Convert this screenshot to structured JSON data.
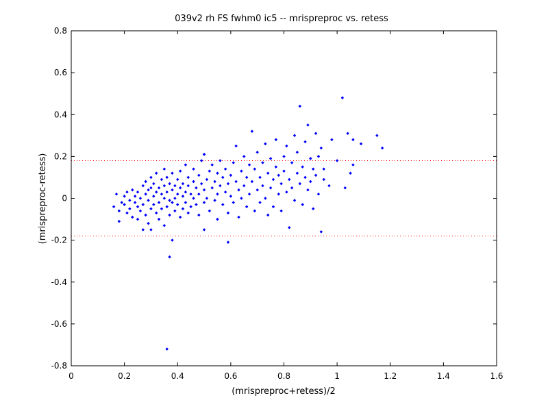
{
  "chart_data": {
    "type": "scatter",
    "title": "039v2 rh FS fwhm0 ic5 -- mrispreproc vs. retess",
    "xlabel": "(mrispreproc+retess)/2",
    "ylabel": "(mrispreproc-retess)",
    "xlim": [
      0,
      1.6
    ],
    "ylim": [
      -0.8,
      0.8
    ],
    "xticks": [
      0,
      0.2,
      0.4,
      0.6,
      0.8,
      1,
      1.2,
      1.4,
      1.6
    ],
    "xtick_labels": [
      "0",
      "0.2",
      "0.4",
      "0.6",
      "0.8",
      "1",
      "1.2",
      "1.4",
      "1.6"
    ],
    "yticks": [
      -0.8,
      -0.6,
      -0.4,
      -0.2,
      0,
      0.2,
      0.4,
      0.6,
      0.8
    ],
    "ytick_labels": [
      "-0.8",
      "-0.6",
      "-0.4",
      "-0.2",
      "0",
      "0.2",
      "0.4",
      "0.6",
      "0.8"
    ],
    "grid": false,
    "marker_color": "#0000ff",
    "reference_lines": [
      {
        "y": 0.18,
        "style": "dotted",
        "color": "#ff0000"
      },
      {
        "y": -0.18,
        "style": "dotted",
        "color": "#ff0000"
      }
    ],
    "points": [
      [
        0.16,
        -0.04
      ],
      [
        0.17,
        0.02
      ],
      [
        0.18,
        -0.06
      ],
      [
        0.18,
        -0.11
      ],
      [
        0.19,
        -0.02
      ],
      [
        0.2,
        -0.03
      ],
      [
        0.2,
        0.01
      ],
      [
        0.21,
        -0.07
      ],
      [
        0.21,
        0.03
      ],
      [
        0.22,
        -0.05
      ],
      [
        0.22,
        -0.01
      ],
      [
        0.23,
        -0.09
      ],
      [
        0.23,
        0.04
      ],
      [
        0.24,
        -0.02
      ],
      [
        0.24,
        0.01
      ],
      [
        0.25,
        -0.04
      ],
      [
        0.25,
        0.03
      ],
      [
        0.25,
        -0.1
      ],
      [
        0.26,
        0.0
      ],
      [
        0.26,
        -0.06
      ],
      [
        0.27,
        0.06
      ],
      [
        0.27,
        -0.03
      ],
      [
        0.27,
        -0.15
      ],
      [
        0.28,
        0.02
      ],
      [
        0.28,
        -0.08
      ],
      [
        0.28,
        0.08
      ],
      [
        0.29,
        -0.01
      ],
      [
        0.29,
        0.04
      ],
      [
        0.29,
        -0.12
      ],
      [
        0.3,
        0.05
      ],
      [
        0.3,
        -0.05
      ],
      [
        0.3,
        0.1
      ],
      [
        0.31,
        0.01
      ],
      [
        0.31,
        -0.03
      ],
      [
        0.31,
        0.07
      ],
      [
        0.32,
        -0.07
      ],
      [
        0.32,
        0.03
      ],
      [
        0.32,
        0.12
      ],
      [
        0.33,
        -0.02
      ],
      [
        0.33,
        0.05
      ],
      [
        0.33,
        -0.1
      ],
      [
        0.34,
        0.02
      ],
      [
        0.34,
        0.09
      ],
      [
        0.34,
        -0.05
      ],
      [
        0.35,
        0.0
      ],
      [
        0.35,
        0.06
      ],
      [
        0.35,
        -0.13
      ],
      [
        0.35,
        0.14
      ],
      [
        0.36,
        0.03
      ],
      [
        0.36,
        -0.04
      ],
      [
        0.36,
        0.1
      ],
      [
        0.37,
        -0.01
      ],
      [
        0.37,
        0.07
      ],
      [
        0.37,
        -0.08
      ],
      [
        0.38,
        0.04
      ],
      [
        0.38,
        -0.02
      ],
      [
        0.38,
        0.12
      ],
      [
        0.39,
        0.0
      ],
      [
        0.39,
        0.06
      ],
      [
        0.39,
        -0.06
      ],
      [
        0.4,
        0.02
      ],
      [
        0.4,
        0.09
      ],
      [
        0.4,
        -0.03
      ],
      [
        0.41,
        0.05
      ],
      [
        0.41,
        -0.09
      ],
      [
        0.41,
        0.13
      ],
      [
        0.42,
        0.01
      ],
      [
        0.42,
        0.07
      ],
      [
        0.42,
        -0.05
      ],
      [
        0.43,
        0.03
      ],
      [
        0.43,
        0.16
      ],
      [
        0.43,
        -0.02
      ],
      [
        0.44,
        0.06
      ],
      [
        0.44,
        -0.07
      ],
      [
        0.44,
        0.1
      ],
      [
        0.45,
        0.02
      ],
      [
        0.45,
        -0.04
      ],
      [
        0.46,
        0.08
      ],
      [
        0.46,
        0.0
      ],
      [
        0.46,
        0.14
      ],
      [
        0.47,
        -0.03
      ],
      [
        0.47,
        0.05
      ],
      [
        0.48,
        0.11
      ],
      [
        0.48,
        -0.08
      ],
      [
        0.48,
        0.02
      ],
      [
        0.49,
        0.07
      ],
      [
        0.49,
        0.18
      ],
      [
        0.5,
        -0.02
      ],
      [
        0.5,
        0.04
      ],
      [
        0.5,
        0.21
      ],
      [
        0.5,
        -0.15
      ],
      [
        0.51,
        0.09
      ],
      [
        0.51,
        0.0
      ],
      [
        0.52,
        0.13
      ],
      [
        0.52,
        -0.06
      ],
      [
        0.53,
        0.05
      ],
      [
        0.53,
        0.16
      ],
      [
        0.54,
        -0.01
      ],
      [
        0.54,
        0.08
      ],
      [
        0.55,
        0.02
      ],
      [
        0.55,
        0.12
      ],
      [
        0.55,
        -0.1
      ],
      [
        0.56,
        0.06
      ],
      [
        0.56,
        0.18
      ],
      [
        0.57,
        -0.03
      ],
      [
        0.57,
        0.1
      ],
      [
        0.58,
        0.03
      ],
      [
        0.58,
        0.14
      ],
      [
        0.59,
        -0.07
      ],
      [
        0.59,
        0.07
      ],
      [
        0.6,
        0.11
      ],
      [
        0.6,
        0.01
      ],
      [
        0.61,
        0.17
      ],
      [
        0.61,
        -0.02
      ],
      [
        0.62,
        0.08
      ],
      [
        0.62,
        0.25
      ],
      [
        0.63,
        0.04
      ],
      [
        0.63,
        -0.09
      ],
      [
        0.64,
        0.13
      ],
      [
        0.64,
        0.0
      ],
      [
        0.65,
        0.2
      ],
      [
        0.65,
        0.06
      ],
      [
        0.66,
        -0.04
      ],
      [
        0.66,
        0.1
      ],
      [
        0.67,
        0.16
      ],
      [
        0.67,
        0.02
      ],
      [
        0.68,
        0.32
      ],
      [
        0.68,
        0.08
      ],
      [
        0.69,
        -0.06
      ],
      [
        0.69,
        0.14
      ],
      [
        0.7,
        0.04
      ],
      [
        0.7,
        0.22
      ],
      [
        0.71,
        0.1
      ],
      [
        0.71,
        -0.02
      ],
      [
        0.72,
        0.17
      ],
      [
        0.72,
        0.06
      ],
      [
        0.73,
        0.26
      ],
      [
        0.73,
        0.0
      ],
      [
        0.74,
        0.12
      ],
      [
        0.74,
        -0.08
      ],
      [
        0.75,
        0.05
      ],
      [
        0.75,
        0.19
      ],
      [
        0.76,
        0.09
      ],
      [
        0.76,
        -0.04
      ],
      [
        0.77,
        0.15
      ],
      [
        0.77,
        0.28
      ],
      [
        0.78,
        0.02
      ],
      [
        0.78,
        0.11
      ],
      [
        0.79,
        0.07
      ],
      [
        0.79,
        -0.06
      ],
      [
        0.8,
        0.2
      ],
      [
        0.8,
        0.13
      ],
      [
        0.81,
        0.03
      ],
      [
        0.81,
        0.25
      ],
      [
        0.82,
        0.09
      ],
      [
        0.82,
        -0.14
      ],
      [
        0.83,
        0.17
      ],
      [
        0.83,
        0.05
      ],
      [
        0.84,
        0.3
      ],
      [
        0.84,
        -0.01
      ],
      [
        0.85,
        0.12
      ],
      [
        0.85,
        0.22
      ],
      [
        0.86,
        0.07
      ],
      [
        0.86,
        0.44
      ],
      [
        0.87,
        0.15
      ],
      [
        0.87,
        -0.03
      ],
      [
        0.88,
        0.27
      ],
      [
        0.88,
        0.1
      ],
      [
        0.89,
        0.04
      ],
      [
        0.89,
        0.35
      ],
      [
        0.9,
        0.19
      ],
      [
        0.9,
        0.08
      ],
      [
        0.91,
        0.14
      ],
      [
        0.91,
        -0.05
      ],
      [
        0.92,
        0.31
      ],
      [
        0.92,
        0.11
      ],
      [
        0.93,
        0.2
      ],
      [
        0.93,
        0.02
      ],
      [
        0.94,
        -0.16
      ],
      [
        0.94,
        0.24
      ],
      [
        0.95,
        0.09
      ],
      [
        0.95,
        0.14
      ],
      [
        0.97,
        0.06
      ],
      [
        0.98,
        0.28
      ],
      [
        1.0,
        0.18
      ],
      [
        1.02,
        0.48
      ],
      [
        1.03,
        0.05
      ],
      [
        1.04,
        0.31
      ],
      [
        1.05,
        0.12
      ],
      [
        1.06,
        0.16
      ],
      [
        1.06,
        0.28
      ],
      [
        1.09,
        0.26
      ],
      [
        1.15,
        0.3
      ],
      [
        1.17,
        0.24
      ],
      [
        0.38,
        -0.2
      ],
      [
        0.37,
        -0.28
      ],
      [
        0.36,
        -0.72
      ],
      [
        0.59,
        -0.21
      ],
      [
        0.5,
        0.21
      ],
      [
        0.3,
        -0.15
      ]
    ]
  }
}
